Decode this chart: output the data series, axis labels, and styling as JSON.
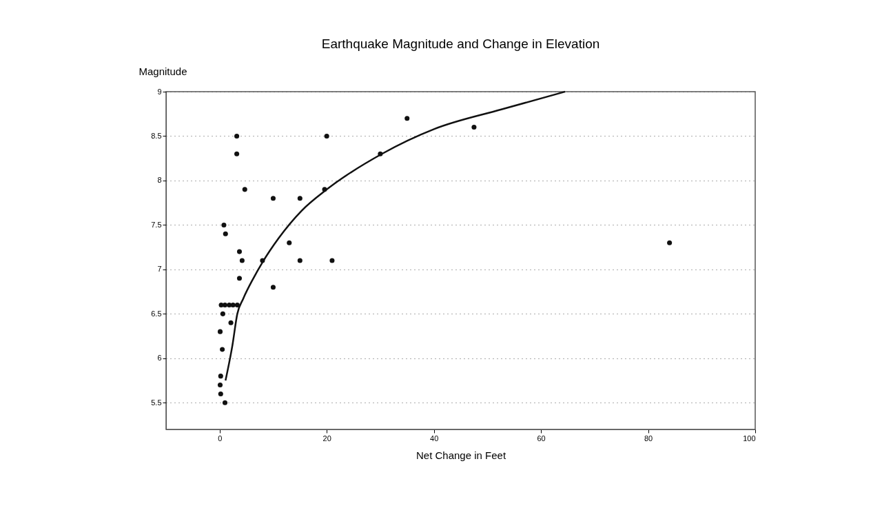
{
  "chart_data": {
    "type": "scatter",
    "title": "Earthquake Magnitude and Change in Elevation",
    "xlabel": "Net Change in Feet",
    "ylabel": "Magnitude",
    "xlim": [
      -10,
      100
    ],
    "xticks": [
      0,
      20,
      40,
      60,
      80,
      100
    ],
    "ylim": [
      5.2,
      9
    ],
    "yticks": [
      5.5,
      6,
      6.5,
      7,
      7.5,
      8,
      8.5,
      9
    ],
    "grid": "y",
    "marker": "circle",
    "series": [
      {
        "color": "#111111",
        "x": [
          3.2,
          3.2,
          4.7,
          10,
          15,
          19.6,
          20,
          0.8,
          1.1,
          3.7,
          4.2,
          8,
          13,
          15,
          21,
          3.7,
          10,
          0.3,
          1,
          1.8,
          2.5,
          3.3,
          0.6,
          2.1,
          0.1,
          0.5,
          0.2,
          0.1,
          0.2,
          1,
          35,
          47.5,
          30,
          84
        ],
        "values": [
          8.5,
          8.3,
          7.9,
          7.8,
          7.8,
          7.9,
          8.5,
          7.5,
          7.4,
          7.2,
          7.1,
          7.1,
          7.3,
          7.1,
          7.1,
          6.9,
          6.8,
          6.6,
          6.6,
          6.6,
          6.6,
          6.6,
          6.5,
          6.4,
          6.3,
          6.1,
          5.8,
          5.7,
          5.6,
          5.5,
          8.7,
          8.6,
          8.3,
          7.3
        ]
      },
      {
        "type": "line",
        "color": "#111111",
        "line_style": "solid",
        "marker": "none",
        "x": [
          1.1,
          2.4,
          3.3,
          4.4,
          6.3,
          8,
          11,
          15.3,
          20,
          30.3,
          40.1,
          52.6,
          64.5
        ],
        "values": [
          5.75,
          6.15,
          6.5,
          6.67,
          6.9,
          7.08,
          7.35,
          7.66,
          7.9,
          8.3,
          8.58,
          8.8,
          9
        ]
      }
    ]
  }
}
